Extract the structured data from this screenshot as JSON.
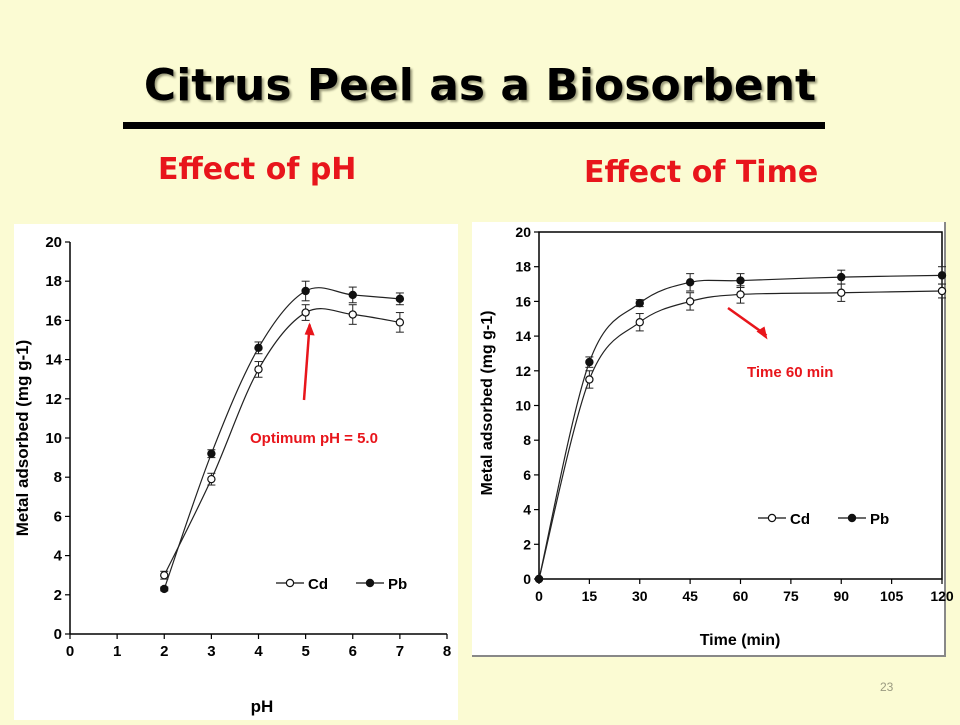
{
  "slide": {
    "title": "Citrus Peel as a Biosorbent",
    "subtitle_left": "Effect of pH",
    "subtitle_right": "Effect of Time",
    "page_number": "23"
  },
  "colors": {
    "background": "#fbfbd3",
    "accent": "#e8151b"
  },
  "chart_data": [
    {
      "type": "line",
      "xlabel": "pH",
      "ylabel": "Metal adsorbed (mg g-1)",
      "xlim": [
        0,
        8
      ],
      "ylim": [
        0,
        20
      ],
      "xticks": [
        0,
        1,
        2,
        3,
        4,
        5,
        6,
        7,
        8
      ],
      "yticks": [
        0,
        2,
        4,
        6,
        8,
        10,
        12,
        14,
        16,
        18,
        20
      ],
      "grid": false,
      "legend": "bottom-right",
      "series": [
        {
          "name": "Cd",
          "marker": "open-circle",
          "x": [
            2,
            3,
            4,
            5,
            6,
            7
          ],
          "y": [
            3.0,
            7.9,
            13.5,
            16.4,
            16.3,
            15.9
          ],
          "err": [
            0.2,
            0.3,
            0.4,
            0.4,
            0.5,
            0.5
          ]
        },
        {
          "name": "Pb",
          "marker": "filled-circle",
          "x": [
            2,
            3,
            4,
            5,
            6,
            7
          ],
          "y": [
            2.3,
            9.2,
            14.6,
            17.5,
            17.3,
            17.1
          ],
          "err": [
            0.1,
            0.2,
            0.3,
            0.5,
            0.4,
            0.3
          ]
        }
      ],
      "annotation": {
        "text": "Optimum pH = 5.0",
        "x": 5.0,
        "y": 16.4
      }
    },
    {
      "type": "line",
      "xlabel": "Time (min)",
      "ylabel": "Metal adsorbed (mg g-1)",
      "xlim": [
        0,
        120
      ],
      "ylim": [
        0,
        20
      ],
      "xticks": [
        0,
        15,
        30,
        45,
        60,
        75,
        90,
        105,
        120
      ],
      "yticks": [
        0,
        2,
        4,
        6,
        8,
        10,
        12,
        14,
        16,
        18,
        20
      ],
      "grid": false,
      "legend": "bottom-right",
      "series": [
        {
          "name": "Cd",
          "marker": "open-circle",
          "x": [
            0,
            15,
            30,
            45,
            60,
            90,
            120
          ],
          "y": [
            0,
            11.5,
            14.8,
            16.0,
            16.4,
            16.5,
            16.6
          ],
          "err": [
            0,
            0.5,
            0.5,
            0.5,
            0.5,
            0.5,
            0.4
          ]
        },
        {
          "name": "Pb",
          "marker": "filled-circle",
          "x": [
            0,
            15,
            30,
            45,
            60,
            90,
            120
          ],
          "y": [
            0,
            12.5,
            15.9,
            17.1,
            17.2,
            17.4,
            17.5
          ],
          "err": [
            0,
            0.3,
            0.2,
            0.5,
            0.4,
            0.4,
            0.5
          ]
        }
      ],
      "annotation": {
        "text": "Time 60 min",
        "x": 60,
        "y": 16.4
      }
    }
  ]
}
